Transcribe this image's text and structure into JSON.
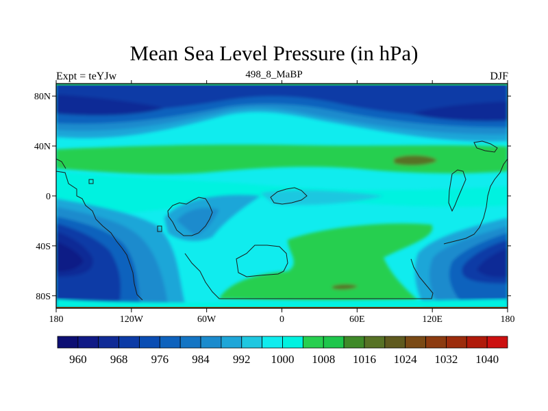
{
  "chart_data": {
    "type": "heatmap",
    "title": "Mean Sea Level Pressure (in hPa)",
    "subtitle_left": "Expt = teYJw",
    "subtitle_center": "498_8_MaBP",
    "subtitle_right": "DJF",
    "x_range": [
      -180,
      180
    ],
    "y_range": [
      -90,
      90
    ],
    "x_ticks": [
      {
        "value": -180,
        "label": "180"
      },
      {
        "value": -120,
        "label": "120W"
      },
      {
        "value": -60,
        "label": "60W"
      },
      {
        "value": 0,
        "label": "0"
      },
      {
        "value": 60,
        "label": "60E"
      },
      {
        "value": 120,
        "label": "120E"
      },
      {
        "value": 180,
        "label": "180"
      }
    ],
    "y_ticks": [
      {
        "value": 80,
        "label": "80N"
      },
      {
        "value": 40,
        "label": "40N"
      },
      {
        "value": 0,
        "label": "0"
      },
      {
        "value": -40,
        "label": "40S"
      },
      {
        "value": -80,
        "label": "80S"
      }
    ],
    "colorbar": {
      "levels": [
        956,
        960,
        964,
        968,
        972,
        976,
        980,
        984,
        988,
        992,
        996,
        1000,
        1004,
        1008,
        1012,
        1016,
        1020,
        1024,
        1028,
        1032,
        1036,
        1040
      ],
      "labels": [
        "960",
        "968",
        "976",
        "984",
        "992",
        "1000",
        "1008",
        "1016",
        "1024",
        "1032",
        "1040"
      ],
      "colors": [
        "#0d0f73",
        "#101a86",
        "#102b96",
        "#0c3ba6",
        "#0a4db3",
        "#0e62bd",
        "#1475c4",
        "#1b8bcd",
        "#1ea6d8",
        "#1fc7e0",
        "#10ecee",
        "#00f2e0",
        "#27cf4f",
        "#1ec64b",
        "#3f8a28",
        "#577225",
        "#5f5a1e",
        "#7a4a15",
        "#8c3b10",
        "#9c2c0c",
        "#b01a0a",
        "#cc1010"
      ]
    },
    "features": {
      "low_north": "Arctic low pressure band across high northern latitudes",
      "high_subtropics": "Zonal high pressure ridge near 30N",
      "low_southern_midlatitudes": "Deep lows near 45S over 180 longitude"
    }
  }
}
